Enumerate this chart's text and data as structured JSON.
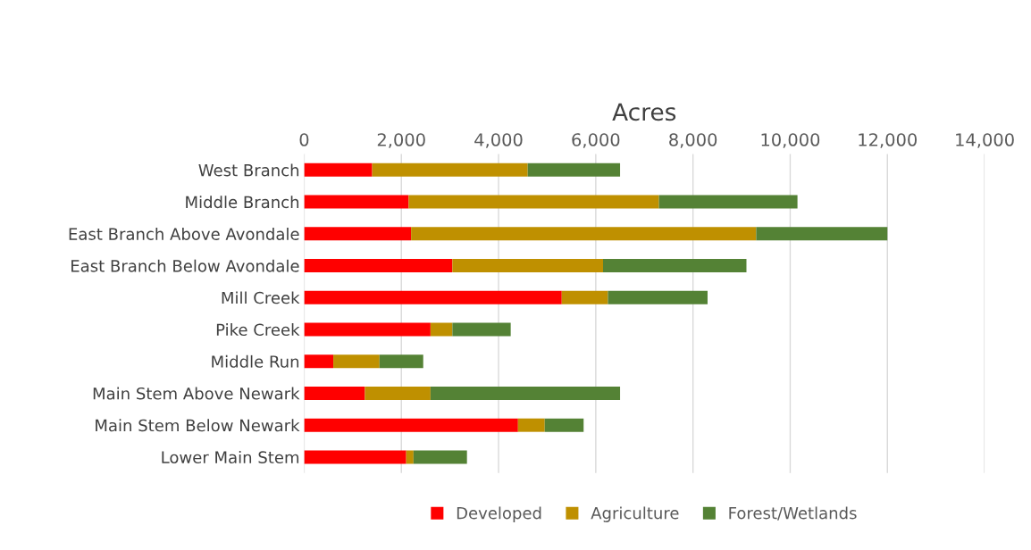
{
  "chart_data": {
    "type": "bar",
    "orientation": "horizontal",
    "stacked": true,
    "xlabel": "Acres",
    "categories": [
      "West Branch",
      "Middle Branch",
      "East Branch Above Avondale",
      "East Branch Below Avondale",
      "Mill Creek",
      "Pike Creek",
      "Middle Run",
      "Main Stem Above Newark",
      "Main Stem Below Newark",
      "Lower Main Stem"
    ],
    "series": [
      {
        "name": "Developed",
        "color": "#ff0000",
        "values": [
          1400,
          2150,
          2200,
          3050,
          5300,
          2600,
          600,
          1250,
          4400,
          2100
        ]
      },
      {
        "name": "Agriculture",
        "color": "#bf9000",
        "values": [
          3200,
          5150,
          7100,
          3100,
          950,
          450,
          950,
          1350,
          550,
          150
        ]
      },
      {
        "name": "Forest/Wetlands",
        "color": "#548235",
        "values": [
          1900,
          2850,
          2700,
          2950,
          2050,
          1200,
          900,
          3900,
          800,
          1100
        ]
      }
    ],
    "xlim": [
      0,
      14000
    ],
    "xticks": [
      {
        "value": 0,
        "label": "0"
      },
      {
        "value": 2000,
        "label": "2,000"
      },
      {
        "value": 4000,
        "label": "4,000"
      },
      {
        "value": 6000,
        "label": "6,000"
      },
      {
        "value": 8000,
        "label": "8,000"
      },
      {
        "value": 10000,
        "label": "10,000"
      },
      {
        "value": 12000,
        "label": "12,000"
      },
      {
        "value": 14000,
        "label": "14,000"
      }
    ],
    "grid": "x",
    "legend": "bottom"
  }
}
